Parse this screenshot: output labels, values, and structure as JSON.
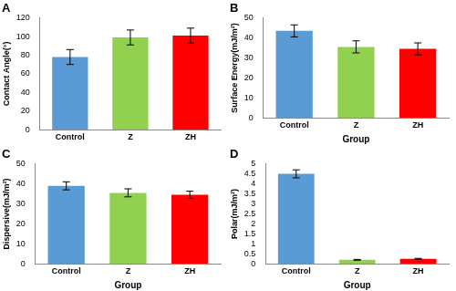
{
  "chart_data": [
    {
      "type": "bar",
      "title": "A",
      "y_label": "Contact Angle(°)",
      "categories": [
        "Control",
        "Z",
        "ZH"
      ],
      "values": [
        78,
        99,
        101
      ],
      "errors": [
        8,
        8,
        8
      ],
      "colors": [
        "#5b9bd5",
        "#92d050",
        "#ff0000"
      ],
      "ylim": [
        0,
        120
      ],
      "yticks": [
        0,
        20,
        40,
        60,
        80,
        100,
        120
      ],
      "grid": false
    },
    {
      "type": "bar",
      "title": "B",
      "x_label": "Group",
      "y_label": "Surface Energy(mJ/m²)",
      "categories": [
        "Control",
        "Z",
        "ZH"
      ],
      "values": [
        43.5,
        35.5,
        34.5
      ],
      "errors": [
        3,
        3,
        3
      ],
      "colors": [
        "#5b9bd5",
        "#92d050",
        "#ff0000"
      ],
      "ylim": [
        0,
        50
      ],
      "yticks": [
        0,
        10,
        20,
        30,
        40,
        50
      ],
      "grid": false
    },
    {
      "type": "bar",
      "title": "C",
      "x_label": "Group",
      "y_label": "Dispersive(mJ/m²)",
      "categories": [
        "Control",
        "Z",
        "ZH"
      ],
      "values": [
        39,
        35.5,
        34.5
      ],
      "errors": [
        2,
        2,
        1.8
      ],
      "colors": [
        "#5b9bd5",
        "#92d050",
        "#ff0000"
      ],
      "ylim": [
        0,
        50
      ],
      "yticks": [
        0,
        10,
        20,
        30,
        40,
        50
      ],
      "grid": false
    },
    {
      "type": "bar",
      "title": "D",
      "x_label": "Group",
      "y_label": "Polar(mJ/m²)",
      "categories": [
        "Control",
        "Z",
        "ZH"
      ],
      "values": [
        4.5,
        0.2,
        0.25
      ],
      "errors": [
        0.2,
        0.02,
        0.02
      ],
      "colors": [
        "#5b9bd5",
        "#92d050",
        "#ff0000"
      ],
      "ylim": [
        0,
        5
      ],
      "yticks": [
        0,
        0.5,
        1,
        1.5,
        2,
        2.5,
        3,
        3.5,
        4,
        4.5,
        5
      ],
      "grid": false
    }
  ]
}
